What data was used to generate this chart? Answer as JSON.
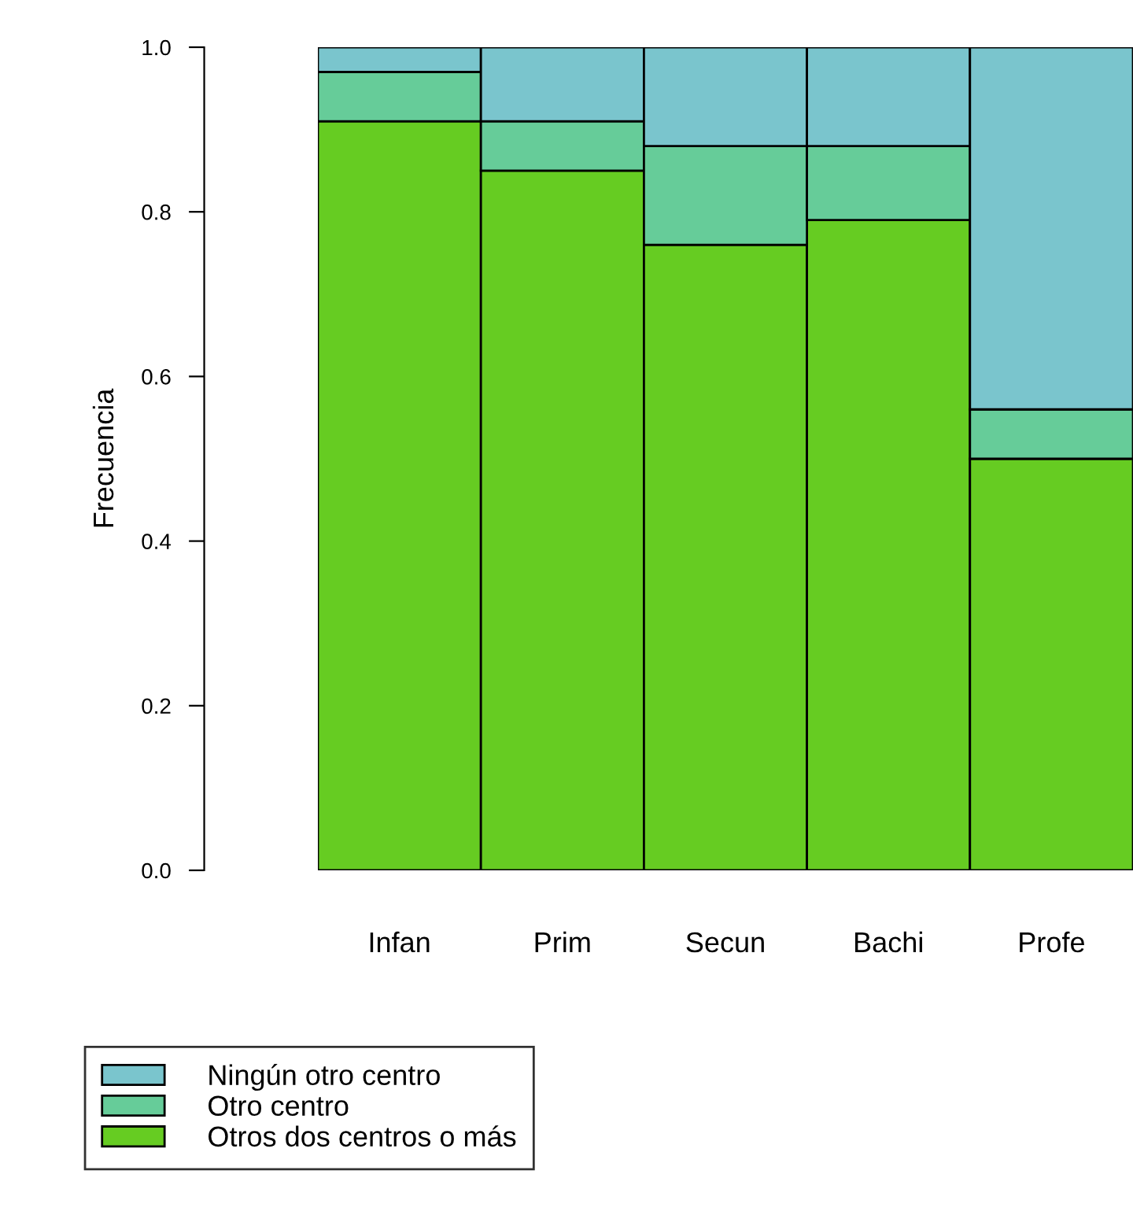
{
  "chart_data": {
    "type": "bar",
    "stacked": true,
    "ylabel": "Frecuencia",
    "categories": [
      "Infan",
      "Prim",
      "Secun",
      "Bachi",
      "Profe"
    ],
    "series": [
      {
        "name": "Otros dos centros o más",
        "color": "#66cc22",
        "values": [
          0.91,
          0.85,
          0.76,
          0.79,
          0.5
        ]
      },
      {
        "name": "Otro centro",
        "color": "#66cc99",
        "values": [
          0.06,
          0.06,
          0.12,
          0.09,
          0.06
        ]
      },
      {
        "name": "Ningún otro centro",
        "color": "#7ac5cd",
        "values": [
          0.03,
          0.09,
          0.12,
          0.12,
          0.44
        ]
      }
    ],
    "ylim": [
      0,
      1
    ],
    "yticks": [
      {
        "value": 0,
        "label": "0.0"
      },
      0.2,
      0.4,
      0.6,
      0.8,
      {
        "value": 1,
        "label": "1.0"
      }
    ],
    "grid": false,
    "legend": "bottom left"
  }
}
